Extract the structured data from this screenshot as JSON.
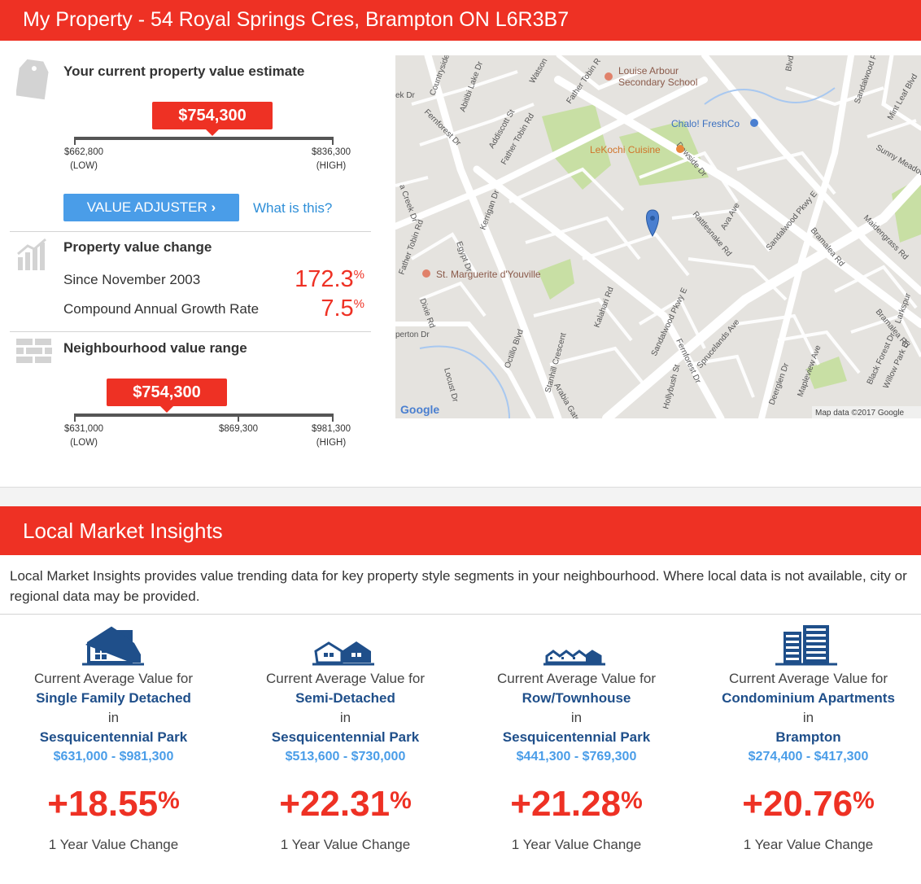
{
  "header": {
    "title": "My Property - 54 Royal Springs Cres, Brampton ON L6R3B7"
  },
  "estimate": {
    "title": "Your current property value estimate",
    "value": "$754,300",
    "low": "$662,800",
    "low_tag": "(LOW)",
    "high": "$836,300",
    "high_tag": "(HIGH)",
    "adjust_label": "VALUE ADJUSTER",
    "what_is_this": "What is this?"
  },
  "change": {
    "title": "Property value change",
    "since_label": "Since November 2003",
    "since_value": "172.3",
    "cagr_label": "Compound Annual Growth Rate",
    "cagr_value": "7.5",
    "pct_symbol": "%"
  },
  "neighbourhood": {
    "title": "Neighbourhood value range",
    "value": "$754,300",
    "low": "$631,000",
    "low_tag": "(LOW)",
    "mid": "$869,300",
    "high": "$981,300",
    "high_tag": "(HIGH)"
  },
  "map": {
    "labels": {
      "school1": "Louise Arbour",
      "school2": "Secondary School",
      "chalo": "Chalo! FreshCo",
      "lekochi": "LeKochi Cuisine",
      "marguerite": "St. Marguerite d'Youville",
      "google": "Google",
      "attribution": "Map data ©2017 Google",
      "watson": "Watson",
      "father_tobin_top": "Father Tobin R",
      "countryside": "Countryside D",
      "abitibi": "Abitibi Lake Dr",
      "fernforest": "Fernforest Dr",
      "addiscott": "Addiscott St",
      "father_tobin": "Father Tobin Rd",
      "dewside": "Dewside Dr",
      "sandalwood_top": "Sandalwood Pk",
      "mint_leaf": "Mint Leaf Blvd",
      "sunny_meadow": "Sunny Meadow",
      "egypt": "Egypt Dr",
      "kerrigan": "Kerrigan Dr",
      "rattlesnake": "Rattlesnake Rd",
      "ava": "Ava Ave",
      "sandalwood_e": "Sandalwood Pkwy E",
      "bramalea_rd": "Bramalea Rd",
      "maidengrass": "Maidengrass Rd",
      "father_tobin_left": "Father Tobin Rd",
      "creek": "a Creek Dr",
      "dixie": "Dixie Rd",
      "octillo": "Octillo Blvd",
      "kalahari": "Kalahari Rd",
      "sandalwood_mid": "Sandalwood Pkwy E",
      "fernforest_mid": "Fernforest Dr",
      "sprucelands": "Sprucelands Ave",
      "bramalea_right": "Bramalea Rd",
      "larkspur": "Larkspur",
      "stanhill": "Stanhill Crescent",
      "arabia": "Arabia Gate",
      "hollybush": "Hollybush St",
      "deerglen": "Deerglen Dr",
      "mapleview": "Mapleview Ave",
      "black_forest": "Black Forest Dr",
      "willow_park": "Willow Park Dr",
      "locust": "Locust Dr",
      "perton": "perton Dr",
      "blvd": "Blvd",
      "ek": "ek Dr"
    }
  },
  "insights": {
    "title": "Local Market Insights",
    "intro": "Local Market Insights provides value trending data for key property style segments in your neighbourhood. Where local data is not available, city or regional data may be provided.",
    "caption": "Current Average Value for",
    "in_word": "in",
    "change_label": "1 Year Value Change",
    "pct_symbol": "%",
    "segments": [
      {
        "icon": "single-family-house-icon",
        "segment": "Single Family Detached",
        "area": "Sesquicentennial Park",
        "range": "$631,000 - $981,300",
        "change": "+18.55"
      },
      {
        "icon": "semi-detached-house-icon",
        "segment": "Semi-Detached",
        "area": "Sesquicentennial Park",
        "range": "$513,600 - $730,000",
        "change": "+22.31"
      },
      {
        "icon": "townhouse-icon",
        "segment": "Row/Townhouse",
        "area": "Sesquicentennial Park",
        "range": "$441,300 - $769,300",
        "change": "+21.28"
      },
      {
        "icon": "condo-building-icon",
        "segment": "Condominium Apartments",
        "area": "Brampton",
        "range": "$274,400 - $417,300",
        "change": "+20.76"
      }
    ]
  },
  "colors": {
    "brand_red": "#ee3124",
    "link_blue": "#2f8fd8",
    "button_blue": "#4a9de8",
    "navy": "#1f4f8a"
  }
}
